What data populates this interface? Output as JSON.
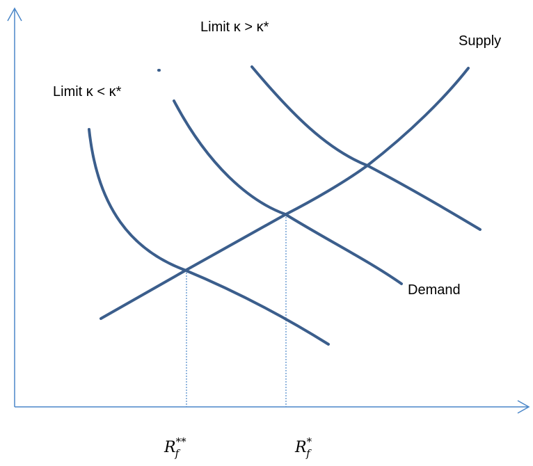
{
  "labels": {
    "limit_high": "Limit κ > κ*",
    "limit_low": "Limit κ < κ*",
    "supply": "Supply",
    "demand": "Demand",
    "rf_double_star": "R_f^**",
    "rf_star": "R_f^*"
  },
  "colors": {
    "axis": "#4A86C8",
    "curve": "#3B5E8C",
    "guide": "#4A86C8",
    "text": "#000000"
  }
}
